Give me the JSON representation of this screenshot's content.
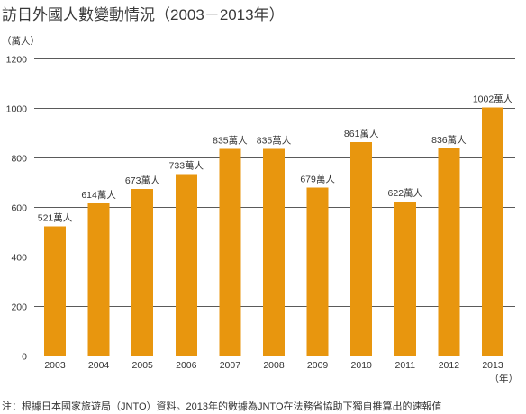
{
  "colors": {
    "bar": "#E8960E",
    "text": "#333333",
    "grid": "#5A5A5A",
    "background": "#FFFFFF"
  },
  "chart_data": {
    "type": "bar",
    "title": "訪日外國人數變動情況（2003－2013年）",
    "ylabel": "（萬人）",
    "xlabel": "（年）",
    "categories": [
      "2003",
      "2004",
      "2005",
      "2006",
      "2007",
      "2008",
      "2009",
      "2010",
      "2011",
      "2012",
      "2013"
    ],
    "values": [
      521,
      614,
      673,
      733,
      835,
      835,
      679,
      861,
      622,
      836,
      1002
    ],
    "data_labels": [
      "521萬人",
      "614萬人",
      "673萬人",
      "733萬人",
      "835萬人",
      "835萬人",
      "679萬人",
      "861萬人",
      "622萬人",
      "836萬人",
      "1002萬人"
    ],
    "yticks": [
      0,
      200,
      400,
      600,
      800,
      1000,
      1200
    ],
    "ylim": [
      0,
      1200
    ],
    "grid": true,
    "legend": "none",
    "note": "注：根據日本國家旅遊局（JNTO）資料。2013年的數據為JNTO在法務省協助下獨自推算出的速報值"
  }
}
